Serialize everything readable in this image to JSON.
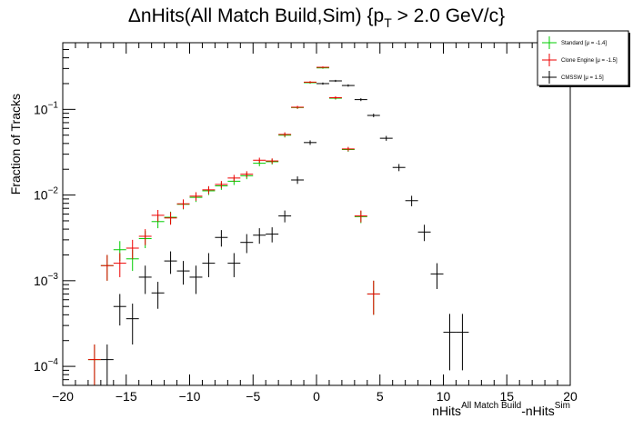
{
  "chart_data": {
    "type": "scatter",
    "title": "ΔnHits(All Match Build,Sim) {p",
    "title_sub": "T",
    "title_tail": " > 2.0 GeV/c}",
    "xlabel_main": "nHits",
    "xlabel_sup1": "All Match Build",
    "xlabel_mid": "-nHits",
    "xlabel_sup2": "Sim",
    "ylabel": "Fraction of Tracks",
    "xlim": [
      -20,
      20
    ],
    "ylim": [
      6e-05,
      0.6
    ],
    "yscale": "log",
    "x_ticks": [
      "−20",
      "−15",
      "−10",
      "−5",
      "0",
      "5",
      "10",
      "15",
      "20"
    ],
    "y_ticks": [
      {
        "base": "10",
        "exp": "−4",
        "value": 0.0001
      },
      {
        "base": "10",
        "exp": "−3",
        "value": 0.001
      },
      {
        "base": "10",
        "exp": "−2",
        "value": 0.01
      },
      {
        "base": "10",
        "exp": "−1",
        "value": 0.1
      }
    ],
    "legend_position": "top-right",
    "series": [
      {
        "name": "Standard",
        "mu_label": "[μ = -1.4]",
        "color": "#00cc00",
        "points": [
          [
            -17.5,
            0.00012,
            6e-05,
            6e-05
          ],
          [
            -16.5,
            0.0015,
            0.0005,
            0.0005
          ],
          [
            -15.5,
            0.0023,
            0.0006,
            0.0006
          ],
          [
            -14.5,
            0.0018,
            0.0005,
            0.0005
          ],
          [
            -13.5,
            0.0031,
            0.0007,
            0.0007
          ],
          [
            -12.5,
            0.0049,
            0.0008,
            0.0008
          ],
          [
            -11.5,
            0.0055,
            0.0009,
            0.0009
          ],
          [
            -10.5,
            0.0078,
            0.001,
            0.001
          ],
          [
            -9.5,
            0.0094,
            0.0011,
            0.0011
          ],
          [
            -8.5,
            0.0112,
            0.0012,
            0.0012
          ],
          [
            -7.5,
            0.0128,
            0.0013,
            0.0013
          ],
          [
            -6.5,
            0.0145,
            0.0014,
            0.0014
          ],
          [
            -5.5,
            0.0168,
            0.0015,
            0.0015
          ],
          [
            -4.5,
            0.0235,
            0.0018,
            0.0018
          ],
          [
            -3.5,
            0.0245,
            0.0018,
            0.0018
          ],
          [
            -2.5,
            0.05,
            0.003,
            0.003
          ],
          [
            -1.5,
            0.105,
            0.004,
            0.004
          ],
          [
            -0.5,
            0.205,
            0.006,
            0.006
          ],
          [
            0.5,
            0.305,
            0.007,
            0.007
          ],
          [
            1.5,
            0.135,
            0.005,
            0.005
          ],
          [
            2.5,
            0.034,
            0.002,
            0.002
          ],
          [
            3.5,
            0.0056,
            0.0009,
            0.0009
          ],
          [
            4.5,
            0.0007,
            0.0003,
            0.0003
          ]
        ]
      },
      {
        "name": "Clone Engine",
        "mu_label": "[μ = -1.5]",
        "color": "#ee0000",
        "points": [
          [
            -17.5,
            0.00012,
            6e-05,
            6e-05
          ],
          [
            -16.5,
            0.0015,
            0.0005,
            0.0005
          ],
          [
            -15.5,
            0.0016,
            0.0005,
            0.0005
          ],
          [
            -14.5,
            0.0024,
            0.0006,
            0.0006
          ],
          [
            -13.5,
            0.0033,
            0.0007,
            0.0007
          ],
          [
            -12.5,
            0.0058,
            0.0009,
            0.0009
          ],
          [
            -11.5,
            0.0054,
            0.0009,
            0.0009
          ],
          [
            -10.5,
            0.0079,
            0.001,
            0.001
          ],
          [
            -9.5,
            0.0097,
            0.0011,
            0.0011
          ],
          [
            -8.5,
            0.0115,
            0.0012,
            0.0012
          ],
          [
            -7.5,
            0.0133,
            0.0013,
            0.0013
          ],
          [
            -6.5,
            0.0158,
            0.0014,
            0.0014
          ],
          [
            -5.5,
            0.0175,
            0.0015,
            0.0015
          ],
          [
            -4.5,
            0.0255,
            0.0018,
            0.0018
          ],
          [
            -3.5,
            0.025,
            0.0018,
            0.0018
          ],
          [
            -2.5,
            0.051,
            0.003,
            0.003
          ],
          [
            -1.5,
            0.106,
            0.004,
            0.004
          ],
          [
            -0.5,
            0.208,
            0.006,
            0.006
          ],
          [
            0.5,
            0.31,
            0.007,
            0.007
          ],
          [
            1.5,
            0.137,
            0.005,
            0.005
          ],
          [
            2.5,
            0.0345,
            0.002,
            0.002
          ],
          [
            3.5,
            0.0057,
            0.0009,
            0.0009
          ],
          [
            4.5,
            0.0007,
            0.0003,
            0.0003
          ]
        ]
      },
      {
        "name": "CMSSW",
        "mu_label": "[μ = 1.5]",
        "color": "#000000",
        "points": [
          [
            -16.5,
            0.00012,
            6e-05,
            6e-05
          ],
          [
            -15.5,
            0.0005,
            0.0002,
            0.0002
          ],
          [
            -14.5,
            0.00036,
            0.00018,
            0.00018
          ],
          [
            -13.5,
            0.0011,
            0.0004,
            0.0004
          ],
          [
            -12.5,
            0.00072,
            0.00025,
            0.00025
          ],
          [
            -11.5,
            0.0017,
            0.0005,
            0.0005
          ],
          [
            -10.5,
            0.0013,
            0.0004,
            0.0004
          ],
          [
            -9.5,
            0.0011,
            0.0004,
            0.0004
          ],
          [
            -8.5,
            0.0016,
            0.0005,
            0.0005
          ],
          [
            -7.5,
            0.0032,
            0.0007,
            0.0007
          ],
          [
            -6.5,
            0.0016,
            0.0005,
            0.0005
          ],
          [
            -5.5,
            0.0028,
            0.0007,
            0.0007
          ],
          [
            -4.5,
            0.0034,
            0.0007,
            0.0007
          ],
          [
            -3.5,
            0.0035,
            0.0007,
            0.0007
          ],
          [
            -2.5,
            0.0057,
            0.0009,
            0.0009
          ],
          [
            -1.5,
            0.015,
            0.0015,
            0.0015
          ],
          [
            -0.5,
            0.041,
            0.0025,
            0.0025
          ],
          [
            0.5,
            0.2,
            0.006,
            0.006
          ],
          [
            1.5,
            0.215,
            0.006,
            0.006
          ],
          [
            2.5,
            0.19,
            0.006,
            0.006
          ],
          [
            3.5,
            0.13,
            0.005,
            0.005
          ],
          [
            4.5,
            0.085,
            0.004,
            0.004
          ],
          [
            5.5,
            0.046,
            0.003,
            0.003
          ],
          [
            6.5,
            0.021,
            0.002,
            0.002
          ],
          [
            7.5,
            0.0086,
            0.0012,
            0.0012
          ],
          [
            8.5,
            0.0037,
            0.0008,
            0.0008
          ],
          [
            9.5,
            0.0012,
            0.0004,
            0.0004
          ],
          [
            10.5,
            0.00025,
            0.00016,
            0.00016
          ],
          [
            11.5,
            0.00025,
            0.00016,
            0.00016
          ]
        ]
      }
    ]
  }
}
